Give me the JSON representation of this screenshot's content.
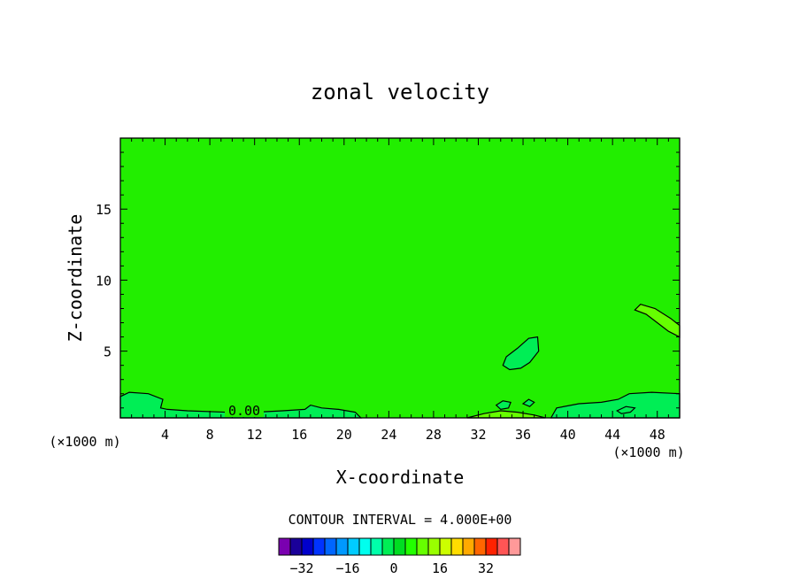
{
  "chart_data": {
    "type": "contour",
    "title": "zonal velocity",
    "xlabel": "X-coordinate",
    "ylabel": "Z-coordinate",
    "x_unit": "(×1000 m)",
    "x_unit_right": "(×1000 m)",
    "xlim": [
      0,
      50
    ],
    "ylim": [
      0.3,
      20
    ],
    "x_ticks": [
      4,
      8,
      12,
      16,
      20,
      24,
      28,
      32,
      36,
      40,
      44,
      48
    ],
    "y_ticks": [
      5,
      10,
      15
    ],
    "contour_interval_text": "CONTOUR INTERVAL = 4.000E+00",
    "contour_label": "0.00",
    "background_level": 0,
    "colorbar": {
      "levels": [
        -36,
        -32,
        -28,
        -24,
        -20,
        -16,
        -12,
        -8,
        -4,
        0,
        4,
        8,
        12,
        16,
        20,
        24,
        28,
        32,
        36
      ],
      "tick_labels": [
        "-32",
        "-16",
        "0",
        "16",
        "32"
      ],
      "tick_values": [
        -32,
        -16,
        0,
        16,
        32
      ],
      "colors": [
        "#7a00b0",
        "#1a0099",
        "#0000cc",
        "#0033ff",
        "#0066ff",
        "#0099ff",
        "#00ccff",
        "#00ffee",
        "#00ffaa",
        "#00ee55",
        "#00dd22",
        "#22ff00",
        "#66ff00",
        "#99ff00",
        "#ccff00",
        "#ffdd00",
        "#ffaa00",
        "#ff6600",
        "#ff2200",
        "#ff5555",
        "#ff9999"
      ]
    },
    "colors": {
      "field": "#22ee00",
      "weak_negative": "#00ee55",
      "weak_positive": "#66ff00"
    },
    "regions": [
      {
        "level": -4,
        "points": [
          [
            0,
            0.3
          ],
          [
            0,
            1.8
          ],
          [
            0.8,
            2.1
          ],
          [
            2.5,
            2.0
          ],
          [
            3.8,
            1.6
          ],
          [
            3.6,
            1.0
          ],
          [
            4.2,
            0.9
          ],
          [
            6.0,
            0.8
          ],
          [
            9.5,
            0.7
          ],
          [
            12,
            0.7
          ],
          [
            14.5,
            0.8
          ],
          [
            16.5,
            0.9
          ],
          [
            17.0,
            1.2
          ],
          [
            18.0,
            1.0
          ],
          [
            19.5,
            0.9
          ],
          [
            21.0,
            0.7
          ],
          [
            21.5,
            0.3
          ]
        ]
      },
      {
        "level": -4,
        "points": [
          [
            38.5,
            0.3
          ],
          [
            39.0,
            1.0
          ],
          [
            41.0,
            1.3
          ],
          [
            43.0,
            1.4
          ],
          [
            44.5,
            1.6
          ],
          [
            45.5,
            2.0
          ],
          [
            47.5,
            2.1
          ],
          [
            50,
            2.0
          ],
          [
            50,
            0.3
          ]
        ]
      },
      {
        "level": -4,
        "points": [
          [
            34.2,
            4.0
          ],
          [
            34.5,
            4.6
          ],
          [
            35.5,
            5.2
          ],
          [
            36.5,
            5.9
          ],
          [
            37.3,
            6.0
          ],
          [
            37.4,
            5.0
          ],
          [
            36.6,
            4.2
          ],
          [
            35.8,
            3.8
          ],
          [
            34.8,
            3.7
          ]
        ]
      },
      {
        "level": 4,
        "points": [
          [
            46.0,
            7.9
          ],
          [
            46.5,
            8.3
          ],
          [
            47.8,
            8.0
          ],
          [
            49.2,
            7.3
          ],
          [
            50,
            6.8
          ],
          [
            50,
            6.0
          ],
          [
            49.0,
            6.4
          ],
          [
            48.0,
            7.0
          ],
          [
            47.0,
            7.6
          ]
        ]
      },
      {
        "level": 4,
        "points": [
          [
            31.0,
            0.3
          ],
          [
            32.5,
            0.6
          ],
          [
            34.0,
            0.8
          ],
          [
            35.5,
            0.7
          ],
          [
            37.0,
            0.5
          ],
          [
            38.0,
            0.3
          ]
        ]
      },
      {
        "level": -4,
        "points": [
          [
            33.6,
            1.2
          ],
          [
            34.2,
            1.5
          ],
          [
            34.9,
            1.4
          ],
          [
            34.7,
            1.0
          ],
          [
            34.0,
            0.9
          ]
        ]
      },
      {
        "level": -4,
        "points": [
          [
            36.0,
            1.3
          ],
          [
            36.5,
            1.6
          ],
          [
            37.0,
            1.4
          ],
          [
            36.6,
            1.1
          ]
        ]
      },
      {
        "level": -4,
        "points": [
          [
            44.4,
            0.8
          ],
          [
            45.2,
            1.1
          ],
          [
            46.0,
            1.0
          ],
          [
            45.6,
            0.7
          ],
          [
            44.8,
            0.6
          ]
        ]
      }
    ]
  }
}
